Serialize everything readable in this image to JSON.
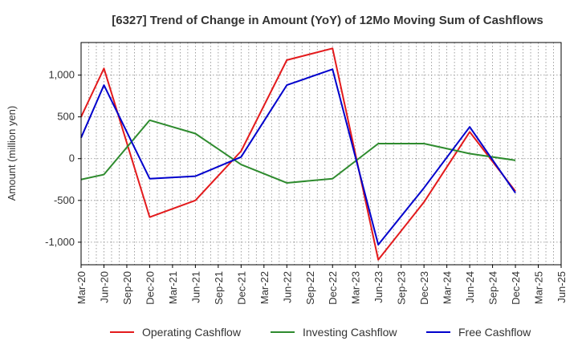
{
  "chart_data": {
    "type": "line",
    "title": "[6327]  Trend of Change in Amount (YoY) of 12Mo Moving Sum of Cashflows",
    "xlabel": "",
    "ylabel": "Amount (million yen)",
    "categories": [
      "Mar-20",
      "Jun-20",
      "Sep-20",
      "Dec-20",
      "Mar-21",
      "Jun-21",
      "Sep-21",
      "Dec-21",
      "Mar-22",
      "Jun-22",
      "Sep-22",
      "Dec-22",
      "Mar-23",
      "Jun-23",
      "Sep-23",
      "Dec-23",
      "Mar-24",
      "Jun-24",
      "Sep-24",
      "Dec-24",
      "Mar-25",
      "Jun-25"
    ],
    "ylim": [
      -1270,
      1390
    ],
    "yticks": [
      -1000,
      -500,
      0,
      500,
      1000
    ],
    "ytick_labels": [
      "-1,000",
      "-500",
      "0",
      "500",
      "1,000"
    ],
    "grid": true,
    "legend_position": "bottom",
    "series": [
      {
        "name": "Operating Cashflow",
        "color": "#e31a1c",
        "values": [
          500,
          1080,
          null,
          -700,
          null,
          -500,
          null,
          90,
          null,
          1180,
          null,
          1320,
          null,
          -1210,
          null,
          -520,
          null,
          320,
          null,
          -390,
          null,
          null
        ]
      },
      {
        "name": "Investing Cashflow",
        "color": "#2e8b2e",
        "values": [
          -250,
          -190,
          null,
          460,
          null,
          300,
          null,
          -70,
          null,
          -290,
          null,
          -240,
          null,
          180,
          null,
          180,
          null,
          60,
          null,
          -20,
          null,
          null
        ]
      },
      {
        "name": "Free Cashflow",
        "color": "#0000cc",
        "values": [
          250,
          880,
          null,
          -240,
          null,
          -210,
          null,
          20,
          null,
          880,
          null,
          1070,
          null,
          -1030,
          null,
          -350,
          null,
          380,
          null,
          -410,
          null,
          null
        ]
      }
    ]
  }
}
